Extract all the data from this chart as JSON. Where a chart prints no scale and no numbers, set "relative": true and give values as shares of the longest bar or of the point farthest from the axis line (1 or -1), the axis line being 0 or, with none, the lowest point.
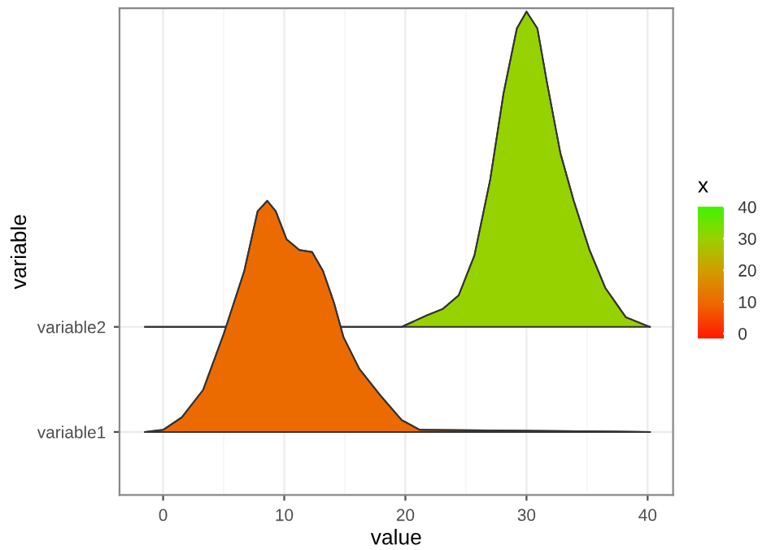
{
  "chart_data": {
    "type": "area",
    "relative": true,
    "xlabel": "value",
    "ylabel": "variable",
    "clabel": "x",
    "xlim": [
      -3.6,
      42.1
    ],
    "xticks": [
      0,
      10,
      20,
      30,
      40
    ],
    "clim": [
      -1.5,
      40.2
    ],
    "cticks": [
      0,
      10,
      20,
      30,
      40
    ],
    "grid": true,
    "series": [
      {
        "name": "variable1",
        "x": [
          -1.5,
          0,
          1.55,
          3.3,
          5.0,
          6.7,
          7.8,
          8.6,
          9.3,
          10.2,
          11.25,
          12.3,
          13.2,
          14.1,
          14.9,
          16.2,
          17.9,
          19.7,
          21.2,
          40.2
        ],
        "values": [
          0,
          0.005,
          0.035,
          0.1,
          0.233,
          0.383,
          0.525,
          0.55,
          0.525,
          0.458,
          0.433,
          0.428,
          0.383,
          0.308,
          0.225,
          0.15,
          0.088,
          0.028,
          0.005,
          0
        ]
      },
      {
        "name": "variable2",
        "x": [
          -1.5,
          19.7,
          21.8,
          23.1,
          24.4,
          25.7,
          27.0,
          28.1,
          29.2,
          30.0,
          30.9,
          31.7,
          32.8,
          33.9,
          35.2,
          36.5,
          38.2,
          39.9,
          40.2
        ],
        "values": [
          0.25,
          0.25,
          0.278,
          0.293,
          0.325,
          0.42,
          0.6,
          0.805,
          0.96,
          1.0,
          0.96,
          0.83,
          0.663,
          0.55,
          0.433,
          0.343,
          0.273,
          0.253,
          0.25
        ]
      }
    ]
  }
}
